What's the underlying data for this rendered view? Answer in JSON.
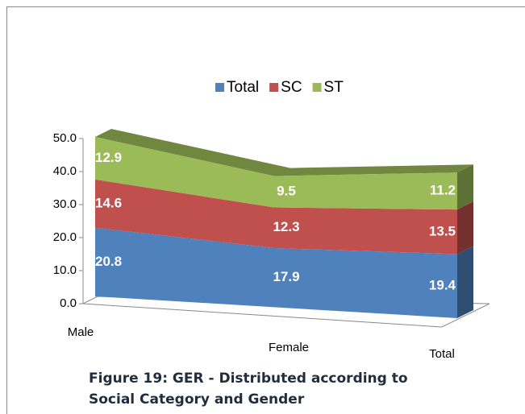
{
  "chart_data": {
    "type": "area3d-stacked",
    "categories": [
      "Male",
      "Female",
      "Total"
    ],
    "series": [
      {
        "name": "Total",
        "color": "#4f81bd",
        "values": [
          20.8,
          17.9,
          19.4
        ]
      },
      {
        "name": "SC",
        "color": "#c0504d",
        "values": [
          14.6,
          12.3,
          13.5
        ]
      },
      {
        "name": "ST",
        "color": "#9bbb59",
        "values": [
          12.9,
          9.5,
          11.2
        ]
      }
    ],
    "ylim": [
      0,
      50
    ],
    "yticks": [
      {
        "value": 0,
        "label": "0.0"
      },
      {
        "value": 10,
        "label": "10.0"
      },
      {
        "value": 20,
        "label": "20.0"
      },
      {
        "value": 30,
        "label": "30.0"
      },
      {
        "value": 40,
        "label": "40.0"
      },
      {
        "value": 50,
        "label": "50.0"
      }
    ],
    "caption": "Figure 19: GER - Distributed according to Social Category and Gender"
  }
}
